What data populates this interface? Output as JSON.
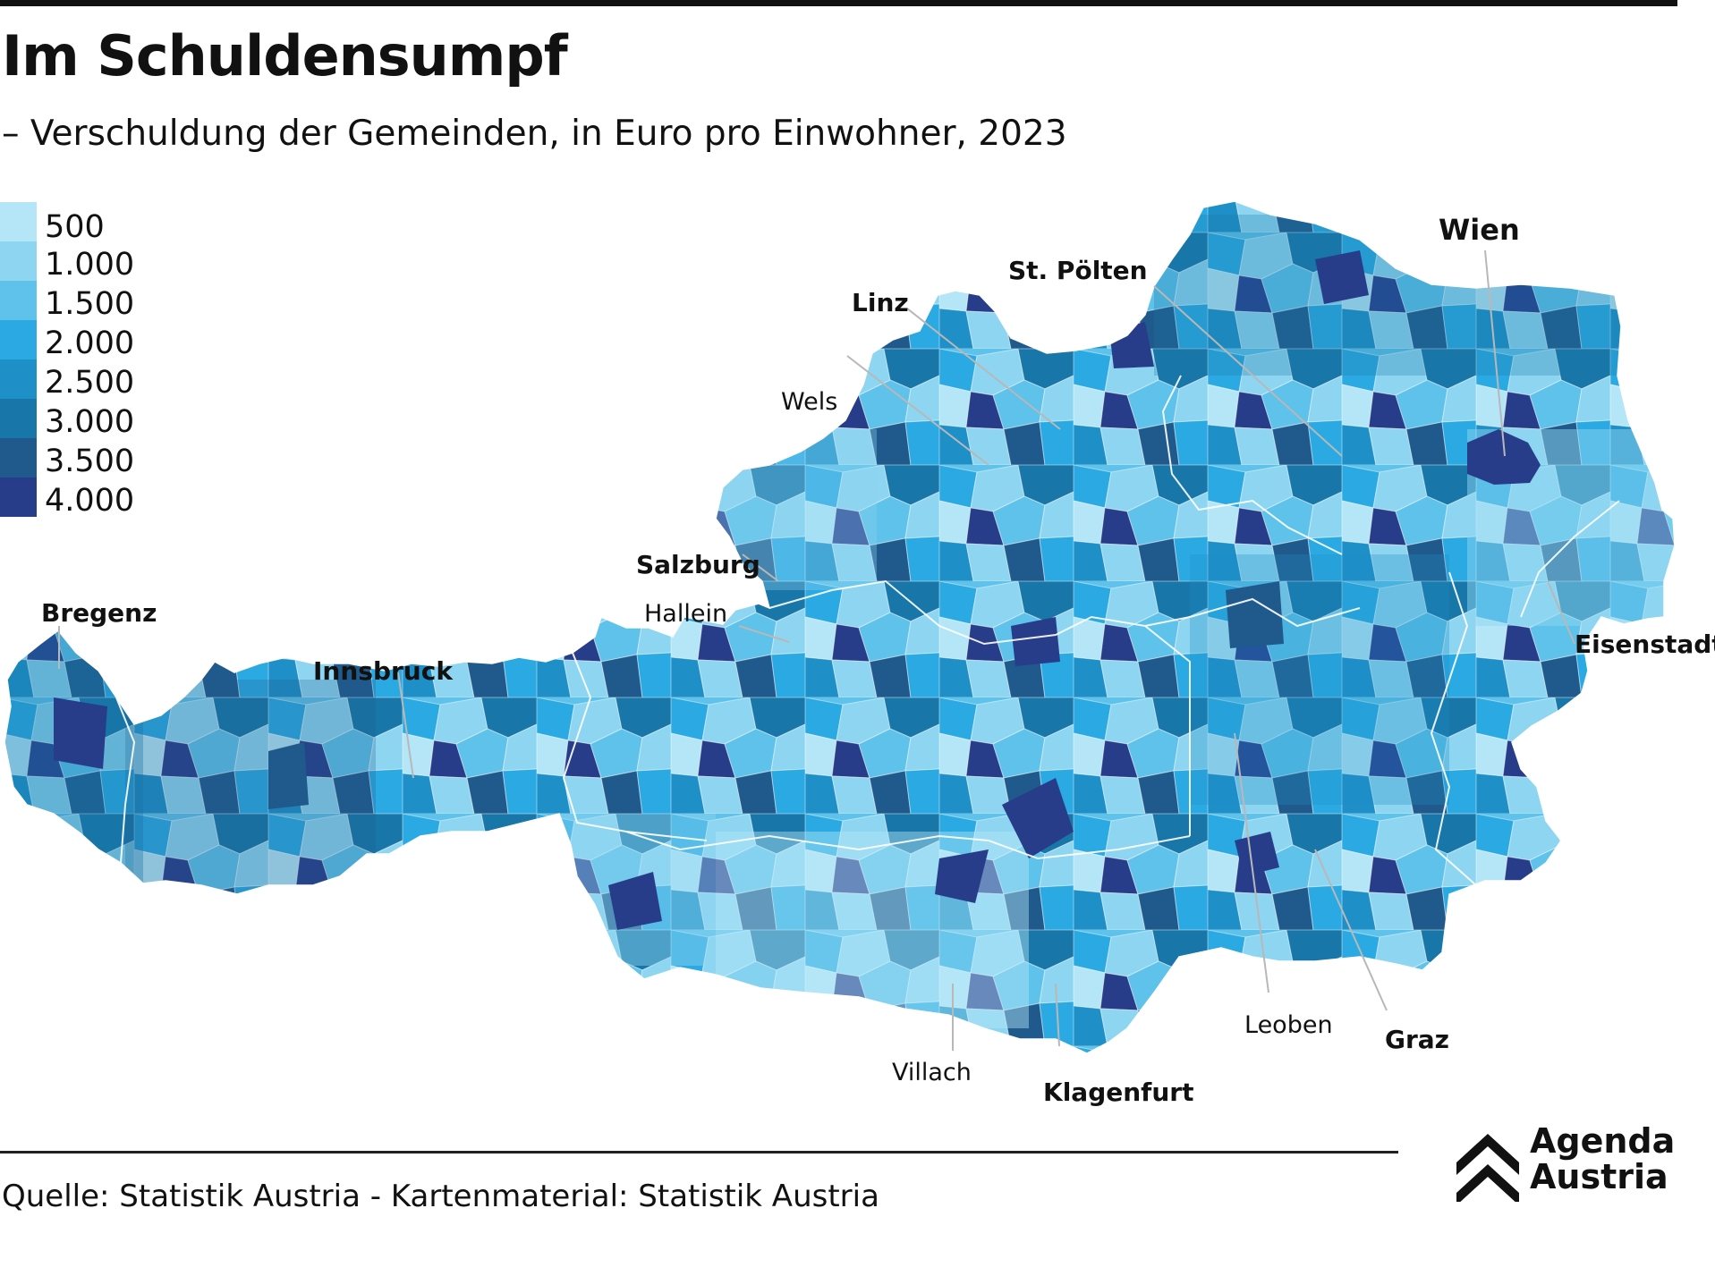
{
  "header": {
    "title": "Im Schuldensumpf",
    "subtitle": "– Verschuldung der Gemeinden, in Euro pro Einwohner, 2023"
  },
  "legend": {
    "items": [
      {
        "label": "500",
        "color": "#b4e6f7"
      },
      {
        "label": "1.000",
        "color": "#8dd5f0"
      },
      {
        "label": "1.500",
        "color": "#5ec2ea"
      },
      {
        "label": "2.000",
        "color": "#2ba9e2"
      },
      {
        "label": "2.500",
        "color": "#1e8fc7"
      },
      {
        "label": "3.000",
        "color": "#1876a8"
      },
      {
        "label": "3.500",
        "color": "#205a8c"
      },
      {
        "label": "4.000",
        "color": "#283d8a"
      }
    ]
  },
  "map": {
    "region": "Austria",
    "cities": {
      "wien": "Wien",
      "st_poelten": "St. Pölten",
      "linz": "Linz",
      "wels": "Wels",
      "salzburg": "Salzburg",
      "hallein": "Hallein",
      "bregenz": "Bregenz",
      "innsbruck": "Innsbruck",
      "eisenstadt": "Eisenstadt",
      "villach": "Villach",
      "klagenfurt": "Klagenfurt",
      "leoben": "Leoben",
      "graz": "Graz"
    }
  },
  "footer": {
    "source": "Quelle: Statistik Austria - Kartenmaterial: Statistik Austria"
  },
  "logo": {
    "line1": "Agenda",
    "line2": "Austria"
  }
}
